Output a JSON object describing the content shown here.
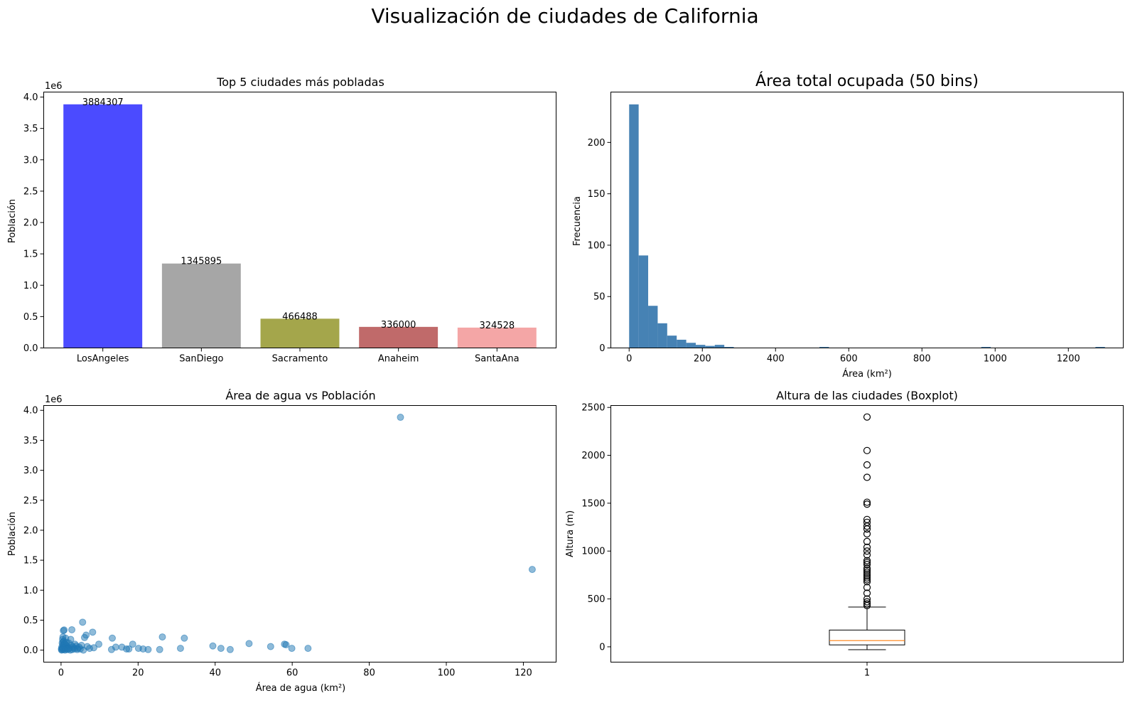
{
  "suptitle": "Visualización de ciudades de California",
  "chart_data": [
    {
      "type": "bar",
      "title": "Top 5 ciudades más pobladas",
      "xlabel": "",
      "ylabel": "Población",
      "offset_label": "1e6",
      "categories": [
        "LosAngeles",
        "SanDiego",
        "Sacramento",
        "Anaheim",
        "SantaAna"
      ],
      "values": [
        3884307,
        1345895,
        466488,
        336000,
        324528
      ],
      "value_labels": [
        "3884307",
        "1345895",
        "466488",
        "336000",
        "324528"
      ],
      "colors": [
        "#4b4bff",
        "#a6a6a6",
        "#a4a64b",
        "#c06a6a",
        "#f4a6a6"
      ],
      "ylim": [
        0,
        4.08
      ],
      "yticks": [
        0,
        0.5,
        1,
        1.5,
        2,
        2.5,
        3,
        3.5,
        4
      ],
      "ytick_labels": [
        "0.0",
        "0.5",
        "1.0",
        "1.5",
        "2.0",
        "2.5",
        "3.0",
        "3.5",
        "4.0"
      ]
    },
    {
      "type": "histogram",
      "title": "Área total ocupada (50 bins)",
      "xlabel": "Área (km²)",
      "ylabel": "Frecuencia",
      "color": "#4682b4",
      "bin_range": [
        0,
        1300
      ],
      "bins": 50,
      "counts": [
        237,
        90,
        41,
        24,
        12,
        8,
        5,
        3,
        2,
        3,
        1,
        0,
        0,
        0,
        0,
        0,
        0,
        0,
        0,
        0,
        1,
        0,
        0,
        0,
        0,
        0,
        0,
        0,
        0,
        0,
        0,
        0,
        0,
        0,
        0,
        0,
        0,
        1,
        0,
        0,
        0,
        0,
        0,
        0,
        0,
        0,
        0,
        0,
        0,
        1
      ],
      "xlim": [
        -50,
        1350
      ],
      "ylim": [
        0,
        249
      ],
      "xticks": [
        0,
        200,
        400,
        600,
        800,
        1000,
        1200
      ],
      "xtick_labels": [
        "0",
        "200",
        "400",
        "600",
        "800",
        "1000",
        "1200"
      ],
      "yticks": [
        0,
        50,
        100,
        150,
        200
      ],
      "ytick_labels": [
        "0",
        "50",
        "100",
        "150",
        "200"
      ]
    },
    {
      "type": "scatter",
      "title": "Área de agua vs Población",
      "xlabel": "Área de agua (km²)",
      "ylabel": "Población",
      "offset_label": "1e6",
      "color": "#1f77b4",
      "points": [
        [
          88.1,
          3.884
        ],
        [
          122.3,
          1.346
        ],
        [
          5.6,
          0.466
        ],
        [
          0.8,
          0.336
        ],
        [
          0.6,
          0.325
        ],
        [
          2.8,
          0.34
        ],
        [
          6.5,
          0.25
        ],
        [
          6.1,
          0.21
        ],
        [
          26.3,
          0.22
        ],
        [
          32.0,
          0.2
        ],
        [
          13.3,
          0.2
        ],
        [
          8.2,
          0.3
        ],
        [
          9.8,
          0.1
        ],
        [
          18.6,
          0.1
        ],
        [
          48.8,
          0.11
        ],
        [
          58.0,
          0.1
        ],
        [
          58.4,
          0.09
        ],
        [
          39.4,
          0.07
        ],
        [
          54.4,
          0.06
        ],
        [
          14.2,
          0.05
        ],
        [
          15.8,
          0.05
        ],
        [
          20.1,
          0.03
        ],
        [
          21.3,
          0.02
        ],
        [
          13.1,
          0.01
        ],
        [
          17.0,
          0.02
        ],
        [
          17.6,
          0.02
        ],
        [
          22.6,
          0.01
        ],
        [
          25.6,
          0.01
        ],
        [
          31.0,
          0.03
        ],
        [
          41.5,
          0.03
        ],
        [
          43.9,
          0.01
        ],
        [
          59.9,
          0.03
        ],
        [
          64.1,
          0.03
        ],
        [
          0.1,
          0.02
        ],
        [
          0.2,
          0.05
        ],
        [
          0.3,
          0.12
        ],
        [
          0.4,
          0.18
        ],
        [
          0.5,
          0.22
        ],
        [
          0.6,
          0.08
        ],
        [
          0.7,
          0.15
        ],
        [
          0.9,
          0.06
        ],
        [
          1.0,
          0.1
        ],
        [
          1.1,
          0.04
        ],
        [
          1.2,
          0.2
        ],
        [
          1.3,
          0.09
        ],
        [
          1.5,
          0.07
        ],
        [
          1.7,
          0.05
        ],
        [
          2.0,
          0.12
        ],
        [
          2.2,
          0.03
        ],
        [
          2.5,
          0.18
        ],
        [
          2.7,
          0.08
        ],
        [
          3.0,
          0.06
        ],
        [
          3.3,
          0.04
        ],
        [
          3.6,
          0.1
        ],
        [
          4.0,
          0.07
        ],
        [
          4.3,
          0.03
        ],
        [
          4.7,
          0.05
        ],
        [
          5.0,
          0.02
        ],
        [
          5.3,
          0.08
        ],
        [
          6.8,
          0.06
        ],
        [
          7.4,
          0.03
        ],
        [
          8.5,
          0.04
        ],
        [
          0.15,
          0.0
        ],
        [
          0.25,
          0.01
        ],
        [
          0.35,
          0.03
        ],
        [
          0.45,
          0.09
        ],
        [
          0.55,
          0.14
        ],
        [
          0.65,
          0.01
        ],
        [
          0.75,
          0.04
        ],
        [
          0.85,
          0.11
        ],
        [
          1.05,
          0.0
        ],
        [
          1.25,
          0.02
        ],
        [
          1.45,
          0.13
        ],
        [
          1.65,
          0.01
        ],
        [
          1.9,
          0.02
        ],
        [
          2.4,
          0.0
        ],
        [
          2.9,
          0.01
        ],
        [
          3.5,
          0.02
        ],
        [
          4.2,
          0.01
        ],
        [
          5.8,
          0.0
        ]
      ],
      "xlim": [
        -4.5,
        128.5
      ],
      "ylim": [
        -0.2,
        4.08
      ],
      "xticks": [
        0,
        20,
        40,
        60,
        80,
        100,
        120
      ],
      "xtick_labels": [
        "0",
        "20",
        "40",
        "60",
        "80",
        "100",
        "120"
      ],
      "yticks": [
        0,
        0.5,
        1,
        1.5,
        2,
        2.5,
        3,
        3.5,
        4
      ],
      "ytick_labels": [
        "0.0",
        "0.5",
        "1.0",
        "1.5",
        "2.0",
        "2.5",
        "3.0",
        "3.5",
        "4.0"
      ]
    },
    {
      "type": "boxplot",
      "title": "Altura de las ciudades (Boxplot)",
      "xlabel": "",
      "ylabel": "Altura (m)",
      "category": "1",
      "median_color": "#ff7f0e",
      "whisker_low": -30,
      "q1": 20,
      "median": 65,
      "q3": 175,
      "whisker_high": 415,
      "outliers": [
        2400,
        2050,
        1900,
        1770,
        1510,
        1490,
        1330,
        1300,
        1260,
        1230,
        1180,
        1100,
        1040,
        1000,
        960,
        900,
        880,
        860,
        820,
        800,
        780,
        760,
        740,
        720,
        700,
        680,
        620,
        560,
        500,
        470,
        450,
        430
      ],
      "ylim": [
        -160,
        2520
      ],
      "yticks": [
        0,
        500,
        1000,
        1500,
        2000,
        2500
      ],
      "ytick_labels": [
        "0",
        "500",
        "1000",
        "1500",
        "2000",
        "2500"
      ]
    }
  ]
}
